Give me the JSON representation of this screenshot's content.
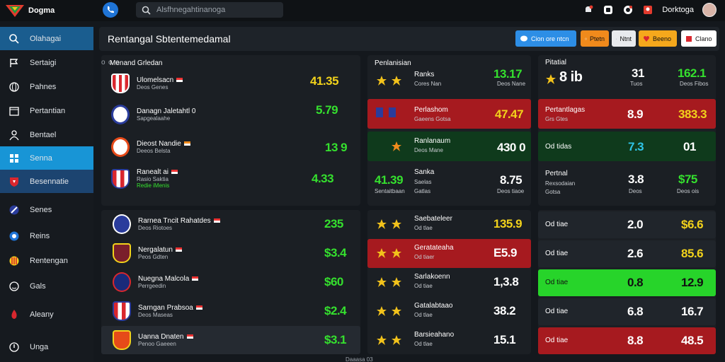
{
  "app": {
    "title": "Dogma"
  },
  "search": {
    "placeholder": "Alsfhnegahtinanoga"
  },
  "top": {
    "user_name": "Dorktoga"
  },
  "sidebar": {
    "items": [
      {
        "label": "Olahagai",
        "icon": "search-icon"
      },
      {
        "label": "Sertaigi",
        "icon": "flag-icon"
      },
      {
        "label": "Pahnes",
        "icon": "globe-icon"
      },
      {
        "label": "Pertantian",
        "icon": "calendar-icon"
      },
      {
        "label": "Bentael",
        "icon": "user-icon"
      },
      {
        "label": "Senna",
        "icon": "grid-icon"
      },
      {
        "label": "Besennatie",
        "icon": "shield-icon"
      },
      {
        "label": "Senes",
        "icon": "ball-icon"
      },
      {
        "label": "Reins",
        "icon": "ball-icon"
      },
      {
        "label": "Rentengan",
        "icon": "ball-icon"
      },
      {
        "label": "Gals",
        "icon": "circle-icon"
      },
      {
        "label": "Aleany",
        "icon": "flame-icon"
      },
      {
        "label": "Unga",
        "icon": "logout-icon"
      }
    ]
  },
  "header": {
    "title": "Rentangal Sbtentemedamal",
    "buttons": [
      {
        "label": "Cion ore ntcn",
        "color": "#2d8ee6"
      },
      {
        "label": "Ptetn",
        "color": "#f08a1c"
      },
      {
        "label": "Ntnt",
        "color": "#1d2a3c"
      },
      {
        "label": "Beeno",
        "color": "#f5a81c"
      },
      {
        "label": "Clano",
        "color": "#ffffff"
      }
    ]
  },
  "left_panel": {
    "title": "Menand Grledan",
    "matches": [
      {
        "name": "Ulomelsacn",
        "sub": "Deos Genes",
        "odds": "41.35",
        "color": "#f2d21b",
        "badge": "#d9272e"
      },
      {
        "name": "Danagn Jaletahtl 0",
        "sub": "Sapgealaahe",
        "odds": "5.79",
        "color": "#35e02e",
        "badge": "#2a3c9c"
      },
      {
        "name": "Dieost Nandie",
        "sub": "Deeos Belsta",
        "odds": "13 9",
        "color": "#35e02e",
        "badge": "#e64a19"
      },
      {
        "name": "Ranealt ai",
        "sub": "Rasio Saktia",
        "sub2": "Redie iMenis",
        "odds": "4.33",
        "color": "#35e02e",
        "badge": "#d9272e"
      }
    ]
  },
  "lower_left": {
    "matches": [
      {
        "name": "Rarnea Tncit Rahatdes",
        "sub": "Deos Riotoes",
        "odds": "235",
        "badge": "#2a3c9c"
      },
      {
        "name": "Nergalatun",
        "sub": "Peos Gdten",
        "odds": "$3.4",
        "badge": "#7a1f2b"
      },
      {
        "name": "Nuegna Malcola",
        "sub": "Perrgeedin",
        "odds": "$60",
        "badge": "#1a2a7a"
      },
      {
        "name": "Sarngan Prabsoa",
        "sub": "Deos Maseas",
        "odds": "$2.4",
        "badge": "#d9272e"
      },
      {
        "name": "Uanna Dnaten",
        "sub": "Penoo Gaeeen",
        "odds": "$3.1",
        "badge": "#e64a19"
      }
    ]
  },
  "mid_panel": {
    "title": "Penlanisian",
    "rows": [
      {
        "name": "Ranks",
        "sub": "Cores Nan",
        "odds": "13.17",
        "color": "#35e02e",
        "bg": "none"
      },
      {
        "name": "Perlashom",
        "sub": "Gaeens Gotsa",
        "odds": "47.47",
        "color": "#f2d21b",
        "bg": "red"
      },
      {
        "name": "Ranlanaum",
        "sub": "Deos Mane",
        "odds": "430 0",
        "color": "#ffffff",
        "bg": "green"
      },
      {
        "name": "Sanka",
        "sub": "Saelas",
        "sub2": "Gatlas",
        "left_val": "41.39",
        "left_sub": "Sentaitbaan",
        "odds": "8.75",
        "odds_sub": "Deos tiaoe",
        "color": "#ffffff",
        "bg": "none"
      }
    ],
    "lower": [
      {
        "name": "Saebateleer",
        "sub": "Od tlae",
        "odds": "135.9",
        "color": "#f2d21b"
      },
      {
        "name": "Geratateaha",
        "sub": "Od tiaer",
        "odds": "E5.9",
        "color": "#ffffff"
      },
      {
        "name": "Sarlakoenn",
        "sub": "Od tiae",
        "odds": "1,3.8",
        "color": "#ffffff"
      },
      {
        "name": "Gatalabtaao",
        "sub": "Od tlae",
        "odds": "38.2",
        "color": "#ffffff"
      },
      {
        "name": "Barsieahano",
        "sub": "Od tlae",
        "odds": "15.1",
        "color": "#ffffff"
      }
    ]
  },
  "right_panel": {
    "title": "Pitatial",
    "head": {
      "big": "8 ib",
      "a": "31",
      "a_sub": "Tuos",
      "b": "162.1",
      "b_sub": "Deos Fibos"
    },
    "rows": [
      {
        "name": "Pertantlagas",
        "sub": "Grs Gtes",
        "a": "8.9",
        "b": "383.3",
        "a_color": "#ffffff",
        "b_color": "#f2d21b",
        "bg": "red"
      },
      {
        "name": "Od tidas",
        "sub": "",
        "a": "7.3",
        "b": "01",
        "a_color": "#2ec4e6",
        "b_color": "#ffffff",
        "bg": "green"
      },
      {
        "name": "Pertnal",
        "sub": "Rexsodaian",
        "sub2": "Gotsa",
        "a": "3.8",
        "a_sub": "Deos",
        "b": "$75",
        "b_sub": "Deos ois",
        "a_color": "#ffffff",
        "b_color": "#35e02e",
        "bg": "none"
      }
    ],
    "lower": [
      {
        "name": "Od tiae",
        "a": "2.0",
        "b": "$6.6",
        "b_color": "#f2d21b",
        "bg": "dark"
      },
      {
        "name": "Od tiae",
        "a": "2.6",
        "b": "85.6",
        "b_color": "#f2d21b",
        "bg": "dark"
      },
      {
        "name": "Od tiae",
        "a": "0.8",
        "b": "12.9",
        "b_color": "#111111",
        "bg": "bright"
      },
      {
        "name": "Od tiae",
        "a": "6.8",
        "b": "16.7",
        "b_color": "#ffffff",
        "bg": "dark"
      },
      {
        "name": "Od tiae",
        "a": "8.8",
        "b": "48.5",
        "b_color": "#ffffff",
        "bg": "red"
      }
    ]
  },
  "footer": {
    "note": "Daaasa 03"
  }
}
